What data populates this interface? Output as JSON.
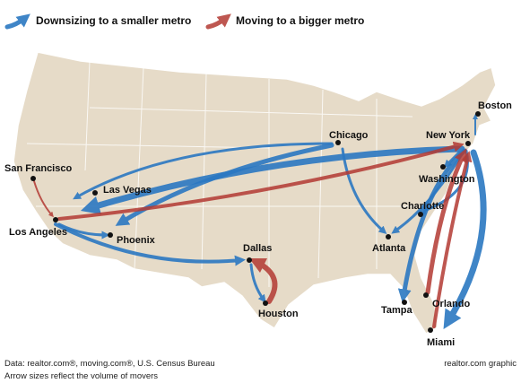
{
  "legend": [
    {
      "label": "Downsizing to a smaller metro"
    },
    {
      "label": "Moving to a bigger metro"
    }
  ],
  "cities": [
    {
      "name": "San Francisco"
    },
    {
      "name": "Los Angeles"
    },
    {
      "name": "Las Vegas"
    },
    {
      "name": "Phoenix"
    },
    {
      "name": "Chicago"
    },
    {
      "name": "New York"
    },
    {
      "name": "Boston"
    },
    {
      "name": "Washington"
    },
    {
      "name": "Charlotte"
    },
    {
      "name": "Atlanta"
    },
    {
      "name": "Dallas"
    },
    {
      "name": "Houston"
    },
    {
      "name": "Tampa"
    },
    {
      "name": "Orlando"
    },
    {
      "name": "Miami"
    }
  ],
  "source": "Data: realtor.com®, moving.com®, U.S. Census Bureau",
  "note": "Arrow sizes reflect the volume of movers",
  "credit": "realtor.com graphic"
}
